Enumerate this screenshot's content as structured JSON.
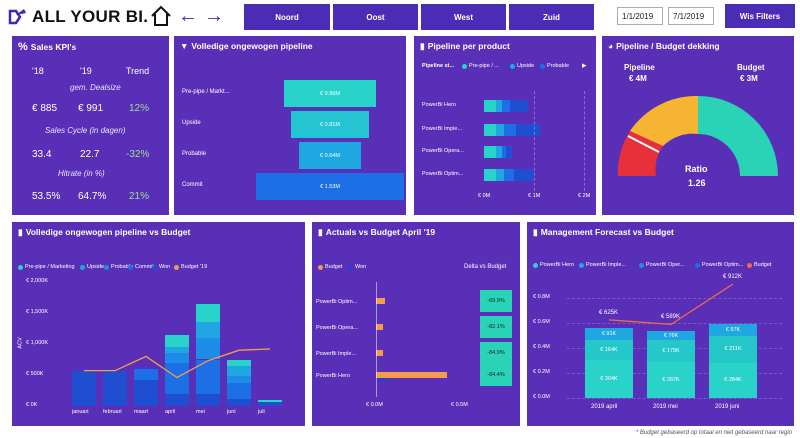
{
  "header": {
    "brand": "ALL YOUR BI.",
    "regions": [
      "Noord",
      "Oost",
      "West",
      "Zuid"
    ],
    "date_from": "1/1/2019",
    "date_to": "7/1/2019",
    "filters_label": "Wis Filters"
  },
  "kpi": {
    "title": "Sales KPI's",
    "col1": "'18",
    "col2": "'19",
    "col3": "Trend",
    "rows": [
      {
        "label": "gem. Dealsize",
        "v18": "€ 885",
        "v19": "€ 991",
        "trend": "12%"
      },
      {
        "label": "Sales Cycle (in dagen)",
        "v18": "33.4",
        "v19": "22.7",
        "trend": "-32%"
      },
      {
        "label": "Hitrate (in %)",
        "v18": "53.5%",
        "v19": "64.7%",
        "trend": "21%"
      }
    ]
  },
  "funnel": {
    "title": "Volledige ongewogen pipeline",
    "rows": [
      {
        "label": "Pre-pipe / Markt...",
        "value": "€ 0.96M",
        "v": 0.96
      },
      {
        "label": "Upside",
        "value": "€ 0.81M",
        "v": 0.81
      },
      {
        "label": "Probable",
        "value": "€ 0.64M",
        "v": 0.64
      },
      {
        "label": "Commit",
        "value": "€ 1.53M",
        "v": 1.53
      }
    ],
    "colors": [
      "#2ad3c9",
      "#24c4d2",
      "#1ea7e0",
      "#1d6fe6"
    ]
  },
  "pipeline_product": {
    "title": "Pipeline per product",
    "legend_title": "Pipeline st...",
    "legend": [
      "Pre-pipe / ...",
      "Upside",
      "Probable"
    ],
    "products": [
      "PowerBi Hero",
      "PowerBi Imple...",
      "PowerBi Opera...",
      "PowerBi Optim..."
    ],
    "xticks": [
      "€ 0M",
      "€ 1M",
      "€ 2M"
    ],
    "series": [
      {
        "name": "Pre-pipe",
        "values": [
          0.3,
          0.3,
          0.3,
          0.3
        ],
        "color": "#2ad3c9"
      },
      {
        "name": "Upside",
        "values": [
          0.15,
          0.2,
          0.15,
          0.2
        ],
        "color": "#1ea7e0"
      },
      {
        "name": "Probable",
        "values": [
          0.2,
          0.3,
          0.1,
          0.25
        ],
        "color": "#1d6fe6"
      },
      {
        "name": "Commit",
        "values": [
          0.45,
          0.6,
          0.15,
          0.5
        ],
        "color": "#1f4fd0"
      }
    ]
  },
  "gauge": {
    "title": "Pipeline / Budget dekking",
    "left_label": "Pipeline",
    "left_value": "€ 4M",
    "right_label": "Budget",
    "right_value": "€ 3M",
    "ratio_label": "Ratio",
    "ratio_value": "1.26"
  },
  "pipe_budget": {
    "title": "Volledige ongewogen pipeline vs Budget",
    "legend": [
      "Pre-pipe / Marketing",
      "Upside",
      "Probable",
      "Commit",
      "Won",
      "Budget '19"
    ],
    "legend_colors": [
      "#2ad3c9",
      "#1ea7e0",
      "#1d8ce6",
      "#1d6fe6",
      "#1f4fd0",
      "#f39c4b"
    ],
    "ylabel": "ACV",
    "yticks": [
      "€ 0K",
      "€ 500K",
      "€ 1,000K",
      "€ 1,500K",
      "€ 2,000K"
    ],
    "categories": [
      "januari",
      "februari",
      "maart",
      "april",
      "mei",
      "juni",
      "juli"
    ],
    "series": [
      {
        "name": "Won",
        "values": [
          560,
          560,
          420,
          200,
          200,
          120,
          60
        ],
        "color": "#1f4fd0"
      },
      {
        "name": "Commit",
        "values": [
          0,
          0,
          180,
          500,
          550,
          250,
          0
        ],
        "color": "#1d6fe6"
      },
      {
        "name": "Probable",
        "values": [
          0,
          0,
          0,
          150,
          350,
          120,
          0
        ],
        "color": "#1d8ce6"
      },
      {
        "name": "Upside",
        "values": [
          0,
          0,
          0,
          100,
          250,
          150,
          0
        ],
        "color": "#1ea7e0"
      },
      {
        "name": "Pre-pipe",
        "values": [
          0,
          0,
          0,
          200,
          300,
          100,
          40
        ],
        "color": "#2ad3c9"
      }
    ],
    "budget": [
      570,
      570,
      800,
      460,
      730,
      900,
      920
    ]
  },
  "actuals": {
    "title": "Actuals vs Budget April '19",
    "legend": [
      "Budget",
      "Won"
    ],
    "delta_title": "Delta vs Budget",
    "products": [
      "PowerBi Optim...",
      "PowerBi Opera...",
      "PowerBi Imple...",
      "PowerBi Hero"
    ],
    "deltas": [
      "-69.9%",
      "-82.1%",
      "-84.9%",
      "-84.4%"
    ],
    "budget": [
      0.05,
      0.04,
      0.04,
      0.42
    ],
    "won": [
      0.015,
      0.007,
      0.006,
      0.066
    ],
    "xticks": [
      "€ 0.0M",
      "€ 0.5M"
    ]
  },
  "forecast": {
    "title": "Management Forecast vs Budget",
    "legend": [
      "PowerBi Hero",
      "PowerBi Imple...",
      "PowerBi Oper...",
      "PowerBi Optim...",
      "Budget"
    ],
    "legend_colors": [
      "#2ad3c9",
      "#1ea7e0",
      "#1d8ce6",
      "#1d6fe6",
      "#f36b4b"
    ],
    "yticks": [
      "€ 0.0M",
      "€ 0.2M",
      "€ 0.4M",
      "€ 0.6M",
      "€ 0.8M"
    ],
    "categories": [
      "2019 april",
      "2019 mei",
      "2019 juni"
    ],
    "segments": [
      {
        "name": "PowerBi Hero",
        "labels": [
          "€ 304K",
          "€ 287K",
          "€ 284K"
        ],
        "values": [
          304,
          287,
          284
        ],
        "color": "#2ad3c9"
      },
      {
        "name": "PowerBi Imple",
        "labels": [
          "€ 164K",
          "€ 175K",
          "€ 211K"
        ],
        "values": [
          164,
          175,
          211
        ],
        "color": "#26c7c9"
      },
      {
        "name": "PowerBi Oper",
        "labels": [
          "€ 91K",
          "€ 76K",
          "€ 97K"
        ],
        "values": [
          91,
          76,
          97
        ],
        "color": "#1ea7e0"
      }
    ],
    "budget_labels": [
      "€ 625K",
      "€ 589K",
      "€ 912K"
    ],
    "budget": [
      625,
      589,
      912
    ],
    "footnote": "* Budget gebaseerd op totaal en niet gebaseerd naar regio"
  }
}
